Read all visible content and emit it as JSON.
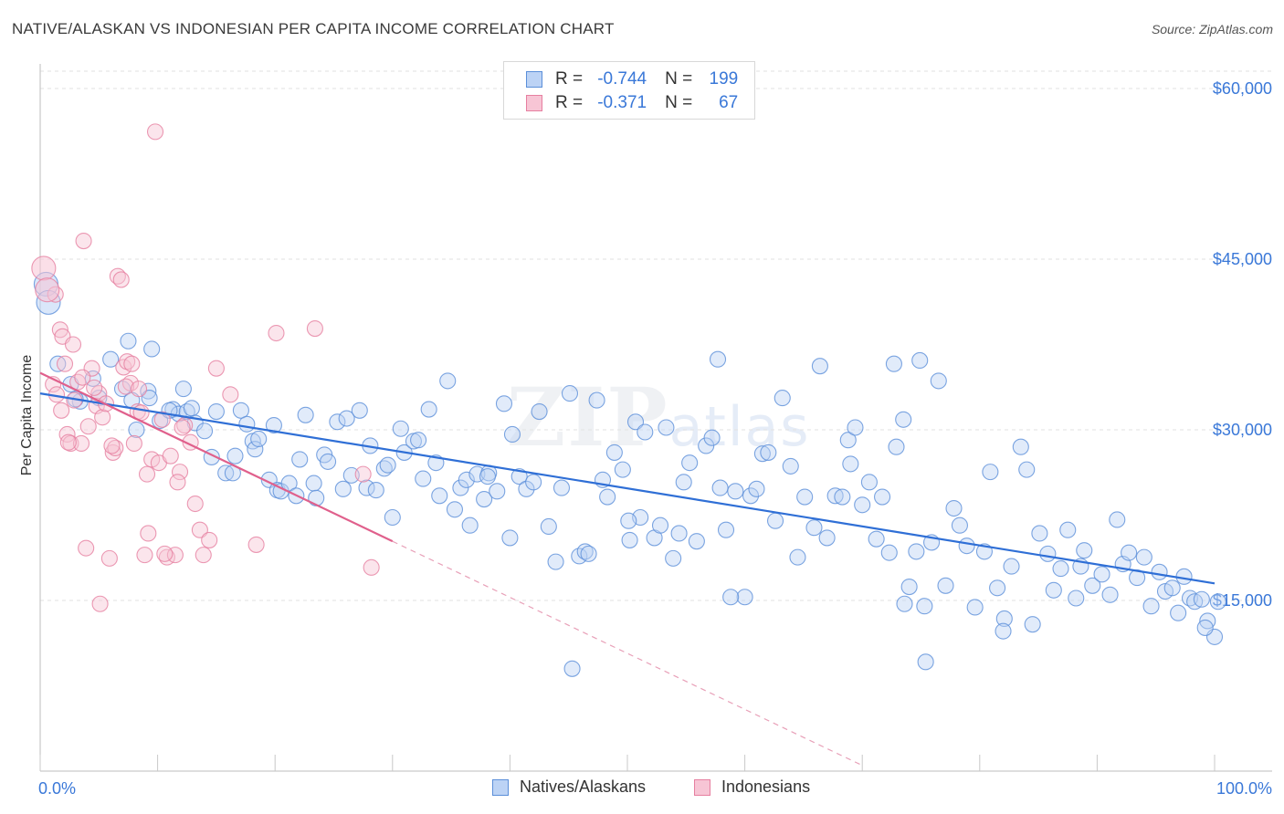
{
  "title": "NATIVE/ALASKAN VS INDONESIAN PER CAPITA INCOME CORRELATION CHART",
  "source": "Source: ZipAtlas.com",
  "watermark": {
    "zip": "ZIP",
    "atlas": "atlas"
  },
  "legend": {
    "rows": [
      {
        "r_label": "R =",
        "r_value": "-0.744",
        "n_label": "N =",
        "n_value": "199",
        "color": "#5b8fd9",
        "fill": "#bcd3f5"
      },
      {
        "r_label": "R =",
        "r_value": "-0.371",
        "n_label": "N =",
        "n_value": "67",
        "color": "#e67fa0",
        "fill": "#f7c5d5"
      }
    ]
  },
  "bottom_legend": [
    {
      "label": "Natives/Alaskans",
      "color": "#5b8fd9",
      "fill": "#bcd3f5"
    },
    {
      "label": "Indonesians",
      "color": "#e67fa0",
      "fill": "#f7c5d5"
    }
  ],
  "chart_data": {
    "type": "scatter",
    "title": "NATIVE/ALASKAN VS INDONESIAN PER CAPITA INCOME CORRELATION CHART",
    "ylabel": "Per Capita Income",
    "xlabel": "",
    "x_unit": "percent",
    "xlim": [
      0,
      100
    ],
    "ylim": [
      0,
      61500
    ],
    "x_tick_labels": [
      "0.0%",
      "100.0%"
    ],
    "y_ticks": [
      15000,
      30000,
      45000,
      60000
    ],
    "y_tick_labels": [
      "$15,000",
      "$30,000",
      "$45,000",
      "$60,000"
    ],
    "grid": true,
    "legend_position": "top-center",
    "series": [
      {
        "name": "Natives/Alaskans",
        "color": "#5b8fd9",
        "fill": "#bcd3f5",
        "R": -0.744,
        "N": 199,
        "trend": {
          "x": [
            0,
            100
          ],
          "y": [
            33200,
            16500
          ]
        },
        "big_points": [
          [
            0.5,
            42800
          ],
          [
            0.7,
            41200
          ]
        ],
        "points": [
          [
            1.5,
            35800
          ],
          [
            2.6,
            34000
          ],
          [
            3.4,
            32500
          ],
          [
            4.5,
            34500
          ],
          [
            5.0,
            32800
          ],
          [
            6.0,
            36200
          ],
          [
            7.0,
            33600
          ],
          [
            7.5,
            37800
          ],
          [
            7.8,
            32600
          ],
          [
            8.2,
            30000
          ],
          [
            9.2,
            33400
          ],
          [
            9.3,
            32800
          ],
          [
            9.5,
            37100
          ],
          [
            10.2,
            30800
          ],
          [
            11.3,
            31800
          ],
          [
            11.8,
            31400
          ],
          [
            12.2,
            33600
          ],
          [
            12.5,
            31600
          ],
          [
            12.9,
            31900
          ],
          [
            13.2,
            30600
          ],
          [
            14.0,
            29900
          ],
          [
            14.6,
            27600
          ],
          [
            15.0,
            31600
          ],
          [
            15.8,
            26200
          ],
          [
            16.4,
            26200
          ],
          [
            16.6,
            27700
          ],
          [
            17.1,
            31700
          ],
          [
            17.6,
            30500
          ],
          [
            18.1,
            29000
          ],
          [
            18.3,
            28300
          ],
          [
            18.6,
            29200
          ],
          [
            19.5,
            25600
          ],
          [
            19.9,
            30400
          ],
          [
            20.2,
            24700
          ],
          [
            20.5,
            24600
          ],
          [
            21.2,
            25300
          ],
          [
            21.8,
            24200
          ],
          [
            22.1,
            27400
          ],
          [
            22.6,
            31300
          ],
          [
            23.3,
            25300
          ],
          [
            23.5,
            24000
          ],
          [
            24.2,
            27800
          ],
          [
            24.5,
            27200
          ],
          [
            25.3,
            30700
          ],
          [
            25.8,
            24800
          ],
          [
            26.1,
            31000
          ],
          [
            26.5,
            26000
          ],
          [
            27.2,
            31700
          ],
          [
            27.8,
            24900
          ],
          [
            28.1,
            28600
          ],
          [
            28.6,
            24700
          ],
          [
            29.3,
            26600
          ],
          [
            29.6,
            26900
          ],
          [
            30.0,
            22300
          ],
          [
            30.7,
            30100
          ],
          [
            31.0,
            28000
          ],
          [
            31.8,
            29000
          ],
          [
            32.2,
            29100
          ],
          [
            32.6,
            25700
          ],
          [
            33.1,
            31800
          ],
          [
            33.7,
            27100
          ],
          [
            34.0,
            24200
          ],
          [
            34.7,
            34300
          ],
          [
            35.3,
            23000
          ],
          [
            35.8,
            24900
          ],
          [
            36.3,
            25600
          ],
          [
            36.6,
            21600
          ],
          [
            37.2,
            26100
          ],
          [
            37.8,
            23900
          ],
          [
            38.2,
            26200
          ],
          [
            38.9,
            24600
          ],
          [
            39.5,
            32300
          ],
          [
            40.0,
            20500
          ],
          [
            40.2,
            29600
          ],
          [
            40.8,
            25900
          ],
          [
            41.4,
            24800
          ],
          [
            42.0,
            25400
          ],
          [
            42.5,
            31600
          ],
          [
            43.3,
            21500
          ],
          [
            43.9,
            18400
          ],
          [
            44.4,
            24900
          ],
          [
            45.1,
            33200
          ],
          [
            45.9,
            18900
          ],
          [
            46.4,
            19300
          ],
          [
            46.7,
            19100
          ],
          [
            47.4,
            32600
          ],
          [
            47.9,
            25600
          ],
          [
            48.3,
            24100
          ],
          [
            48.9,
            28000
          ],
          [
            49.6,
            26500
          ],
          [
            50.2,
            20300
          ],
          [
            50.7,
            30700
          ],
          [
            51.1,
            22300
          ],
          [
            51.5,
            29800
          ],
          [
            52.3,
            20500
          ],
          [
            52.8,
            21600
          ],
          [
            53.3,
            30200
          ],
          [
            53.9,
            18700
          ],
          [
            54.4,
            20900
          ],
          [
            54.8,
            25400
          ],
          [
            55.3,
            27100
          ],
          [
            55.9,
            20200
          ],
          [
            56.7,
            28600
          ],
          [
            57.2,
            29300
          ],
          [
            57.9,
            24900
          ],
          [
            58.4,
            21200
          ],
          [
            59.2,
            24600
          ],
          [
            60.0,
            15300
          ],
          [
            60.5,
            24200
          ],
          [
            61.0,
            24800
          ],
          [
            61.5,
            27900
          ],
          [
            62.0,
            28000
          ],
          [
            62.6,
            22000
          ],
          [
            63.2,
            32800
          ],
          [
            63.9,
            26800
          ],
          [
            64.5,
            18800
          ],
          [
            65.1,
            24100
          ],
          [
            65.9,
            21400
          ],
          [
            66.4,
            35600
          ],
          [
            67.0,
            20500
          ],
          [
            67.7,
            24200
          ],
          [
            68.3,
            24100
          ],
          [
            68.8,
            29100
          ],
          [
            69.4,
            30200
          ],
          [
            70.0,
            23400
          ],
          [
            70.6,
            25400
          ],
          [
            71.2,
            20400
          ],
          [
            71.7,
            24100
          ],
          [
            72.3,
            19200
          ],
          [
            72.9,
            28500
          ],
          [
            73.5,
            30900
          ],
          [
            74.0,
            16200
          ],
          [
            74.6,
            19300
          ],
          [
            75.3,
            14500
          ],
          [
            75.9,
            20100
          ],
          [
            76.5,
            34300
          ],
          [
            77.1,
            16300
          ],
          [
            77.8,
            23100
          ],
          [
            78.3,
            21600
          ],
          [
            78.9,
            19800
          ],
          [
            79.6,
            14400
          ],
          [
            80.4,
            19300
          ],
          [
            80.9,
            26300
          ],
          [
            81.5,
            16100
          ],
          [
            82.1,
            13400
          ],
          [
            82.7,
            18000
          ],
          [
            83.5,
            28500
          ],
          [
            84.0,
            26500
          ],
          [
            84.5,
            12900
          ],
          [
            85.1,
            20900
          ],
          [
            85.8,
            19100
          ],
          [
            86.3,
            15900
          ],
          [
            86.9,
            17800
          ],
          [
            87.5,
            21200
          ],
          [
            88.2,
            15200
          ],
          [
            88.9,
            19400
          ],
          [
            89.6,
            16300
          ],
          [
            90.4,
            17300
          ],
          [
            91.1,
            15500
          ],
          [
            91.7,
            22100
          ],
          [
            92.2,
            18200
          ],
          [
            92.7,
            19200
          ],
          [
            93.4,
            17000
          ],
          [
            94.0,
            18800
          ],
          [
            94.6,
            14500
          ],
          [
            95.3,
            17500
          ],
          [
            95.8,
            15800
          ],
          [
            96.4,
            16100
          ],
          [
            96.9,
            13900
          ],
          [
            97.4,
            17100
          ],
          [
            97.9,
            15200
          ],
          [
            98.3,
            14900
          ],
          [
            98.9,
            15100
          ],
          [
            99.4,
            13200
          ],
          [
            100.0,
            11800
          ],
          [
            100.3,
            14900
          ],
          [
            50.1,
            22000
          ],
          [
            57.7,
            36200
          ],
          [
            73.6,
            14700
          ],
          [
            45.3,
            9000
          ],
          [
            75.4,
            9600
          ],
          [
            72.7,
            35800
          ],
          [
            38.1,
            25900
          ],
          [
            58.8,
            15300
          ],
          [
            74.9,
            36100
          ],
          [
            82.0,
            12300
          ],
          [
            88.6,
            18000
          ],
          [
            99.2,
            12600
          ],
          [
            3.0,
            32700
          ],
          [
            11.0,
            31700
          ],
          [
            69.0,
            27000
          ]
        ]
      },
      {
        "name": "Indonesians",
        "color": "#e67fa0",
        "fill": "#f7c5d5",
        "R": -0.371,
        "N": 67,
        "trend": {
          "x": [
            0,
            30
          ],
          "y": [
            35000,
            20200
          ]
        },
        "trend_dashed": {
          "x": [
            30,
            70
          ],
          "y": [
            20200,
            500
          ]
        },
        "big_points": [
          [
            0.3,
            44200
          ],
          [
            0.6,
            42300
          ]
        ],
        "points": [
          [
            1.1,
            34000
          ],
          [
            1.4,
            33100
          ],
          [
            1.7,
            38800
          ],
          [
            1.9,
            38200
          ],
          [
            2.1,
            35800
          ],
          [
            2.3,
            29600
          ],
          [
            2.6,
            28800
          ],
          [
            2.9,
            32600
          ],
          [
            3.2,
            34200
          ],
          [
            3.5,
            28800
          ],
          [
            3.7,
            46600
          ],
          [
            3.9,
            19600
          ],
          [
            4.1,
            30300
          ],
          [
            4.4,
            35400
          ],
          [
            4.8,
            32100
          ],
          [
            5.0,
            33200
          ],
          [
            5.3,
            31100
          ],
          [
            5.6,
            32300
          ],
          [
            5.9,
            18700
          ],
          [
            6.2,
            28000
          ],
          [
            6.4,
            28400
          ],
          [
            6.6,
            43500
          ],
          [
            6.9,
            43200
          ],
          [
            7.1,
            35500
          ],
          [
            7.4,
            36000
          ],
          [
            7.7,
            34100
          ],
          [
            8.0,
            28800
          ],
          [
            8.3,
            31600
          ],
          [
            8.6,
            31500
          ],
          [
            8.9,
            19000
          ],
          [
            9.2,
            20900
          ],
          [
            9.5,
            27400
          ],
          [
            9.8,
            56200
          ],
          [
            10.1,
            27100
          ],
          [
            10.4,
            30900
          ],
          [
            10.8,
            18800
          ],
          [
            11.1,
            27700
          ],
          [
            11.5,
            19000
          ],
          [
            11.9,
            26300
          ],
          [
            12.3,
            30400
          ],
          [
            12.8,
            28900
          ],
          [
            13.2,
            23500
          ],
          [
            13.6,
            21200
          ],
          [
            14.4,
            20300
          ],
          [
            15.0,
            35400
          ],
          [
            16.2,
            33100
          ],
          [
            18.4,
            19900
          ],
          [
            20.1,
            38500
          ],
          [
            23.4,
            38900
          ],
          [
            27.5,
            26100
          ],
          [
            28.2,
            17900
          ],
          [
            5.1,
            14700
          ],
          [
            2.4,
            28900
          ],
          [
            1.8,
            31700
          ],
          [
            6.1,
            28600
          ],
          [
            7.3,
            33800
          ],
          [
            8.4,
            33600
          ],
          [
            9.1,
            26100
          ],
          [
            10.6,
            19100
          ],
          [
            11.7,
            25400
          ],
          [
            13.9,
            19000
          ],
          [
            3.6,
            34600
          ],
          [
            4.6,
            33700
          ],
          [
            12.1,
            30200
          ],
          [
            7.8,
            35800
          ],
          [
            2.8,
            37500
          ],
          [
            1.3,
            41900
          ]
        ]
      }
    ]
  }
}
